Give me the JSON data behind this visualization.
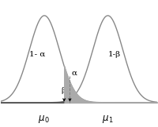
{
  "mu0": 0,
  "mu1": 5.5,
  "sigma0": 1.3,
  "sigma1": 1.3,
  "bg_color": "#ffffff",
  "curve_color": "#888888",
  "fill_beta_color": "#555555",
  "fill_alpha_color": "#aaaaaa",
  "baseline_color": "#000000",
  "label_1malpha": "1- α",
  "label_beta": "β",
  "label_alpha": "α",
  "label_1mbeta": "1-β",
  "figsize": [
    2.0,
    1.62
  ],
  "dpi": 100
}
